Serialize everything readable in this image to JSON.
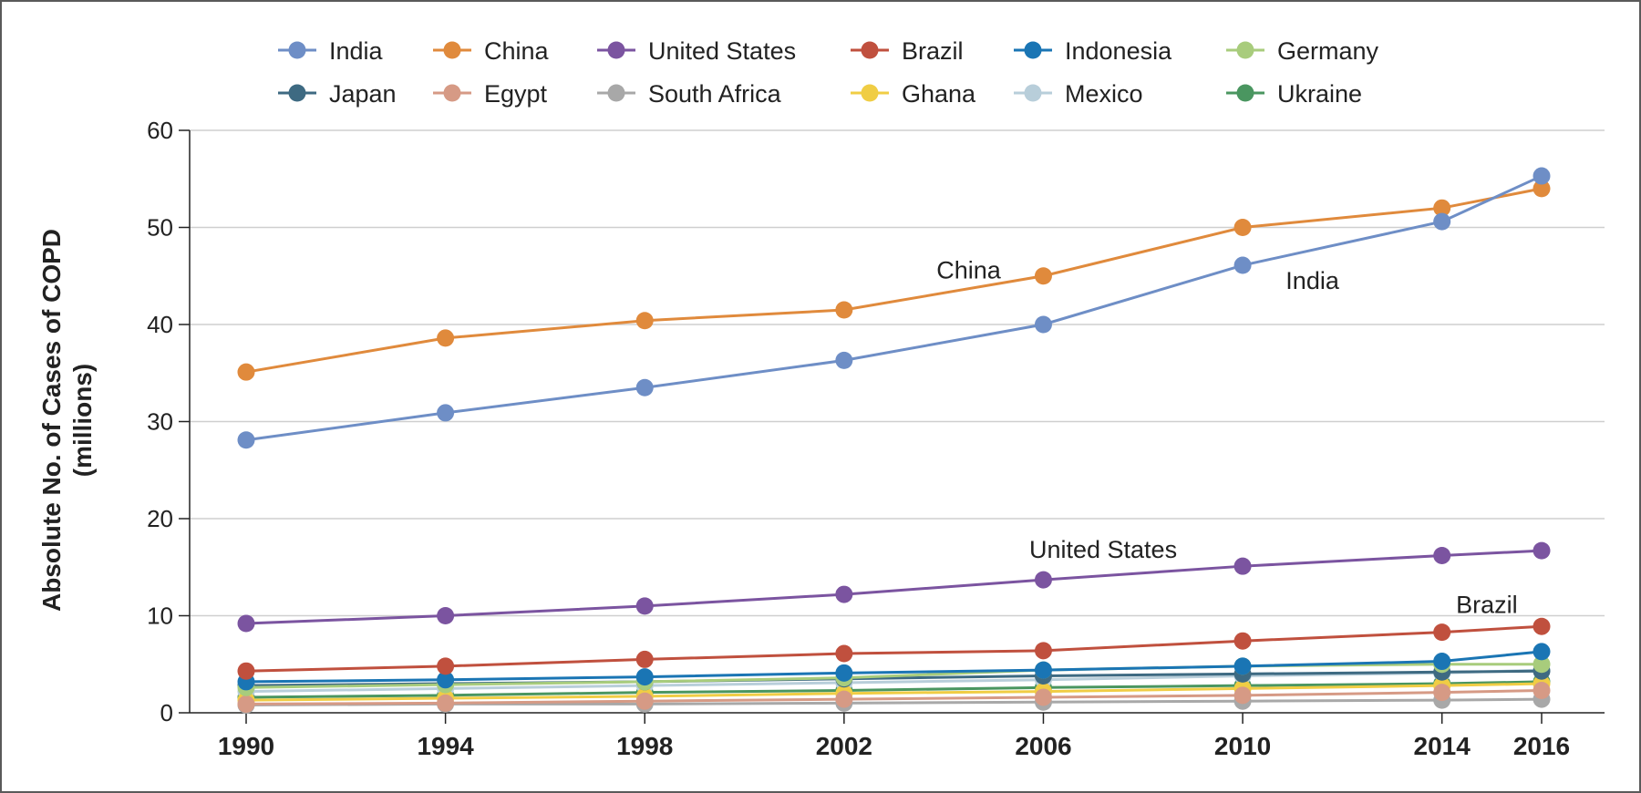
{
  "chart_data": {
    "type": "line",
    "title": "",
    "xlabel": "",
    "ylabel": [
      "Absolute No. of Cases of COPD",
      "(millions)"
    ],
    "x": [
      1990,
      1994,
      1998,
      2002,
      2006,
      2010,
      2014,
      2016
    ],
    "xticks": [
      "1990",
      "1994",
      "1998",
      "2002",
      "2006",
      "2010",
      "2014",
      "2016"
    ],
    "ylim": [
      0,
      60
    ],
    "yticks": [
      "0",
      "10",
      "20",
      "30",
      "40",
      "50",
      "60"
    ],
    "grid": "horizontal",
    "legend_position": "top",
    "series": [
      {
        "name": "India",
        "color": "#6e8ec6",
        "values": [
          28.1,
          30.9,
          33.5,
          36.3,
          40.0,
          46.1,
          50.6,
          55.3
        ]
      },
      {
        "name": "China",
        "color": "#e08a3c",
        "values": [
          35.1,
          38.6,
          40.4,
          41.5,
          45.0,
          50.0,
          52.0,
          54.0
        ]
      },
      {
        "name": "United States",
        "color": "#7b54a0",
        "values": [
          9.2,
          10.0,
          11.0,
          12.2,
          13.7,
          15.1,
          16.2,
          16.7
        ]
      },
      {
        "name": "Brazil",
        "color": "#c0503e",
        "values": [
          4.3,
          4.8,
          5.5,
          6.1,
          6.4,
          7.4,
          8.3,
          8.9
        ]
      },
      {
        "name": "Indonesia",
        "color": "#1a75b4",
        "values": [
          3.2,
          3.4,
          3.7,
          4.1,
          4.4,
          4.8,
          5.3,
          6.3
        ]
      },
      {
        "name": "Germany",
        "color": "#a8cc7c",
        "values": [
          2.6,
          2.9,
          3.2,
          3.6,
          4.4,
          4.8,
          5.0,
          5.0
        ]
      },
      {
        "name": "Japan",
        "color": "#3e6a82",
        "values": [
          2.8,
          3.0,
          3.2,
          3.5,
          3.8,
          4.0,
          4.2,
          4.3
        ]
      },
      {
        "name": "Egypt",
        "color": "#d69a85",
        "values": [
          0.9,
          1.0,
          1.2,
          1.4,
          1.6,
          1.8,
          2.1,
          2.3
        ]
      },
      {
        "name": "South Africa",
        "color": "#a8a8a8",
        "values": [
          0.8,
          0.9,
          0.9,
          1.0,
          1.1,
          1.2,
          1.3,
          1.4
        ]
      },
      {
        "name": "Ghana",
        "color": "#f0cd44",
        "values": [
          1.3,
          1.5,
          1.7,
          2.0,
          2.2,
          2.5,
          2.8,
          3.0
        ]
      },
      {
        "name": "Mexico",
        "color": "#b8ceda",
        "values": [
          2.2,
          2.5,
          2.8,
          3.1,
          3.4,
          3.8,
          4.1,
          4.4
        ]
      },
      {
        "name": "Ukraine",
        "color": "#4a9660",
        "values": [
          1.6,
          1.8,
          2.1,
          2.3,
          2.6,
          2.8,
          3.0,
          3.2
        ]
      }
    ],
    "annotations": [
      {
        "text": "China",
        "x": 2004.5,
        "y": 45.7
      },
      {
        "text": "India",
        "x": 2011.4,
        "y": 44.6
      },
      {
        "text": "United States",
        "x": 2007.2,
        "y": 16.9
      },
      {
        "text": "Brazil",
        "x": 2014.9,
        "y": 11.2
      }
    ]
  }
}
